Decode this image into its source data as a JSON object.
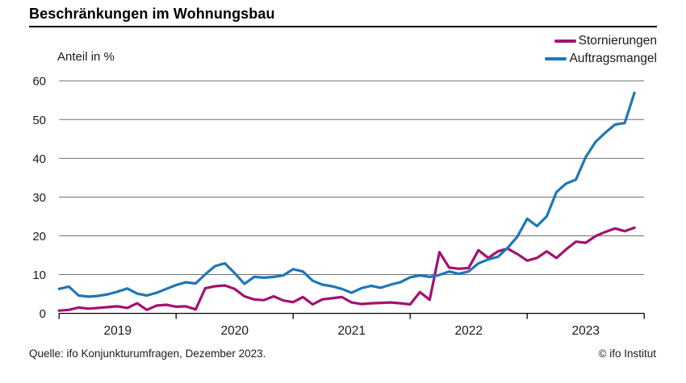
{
  "header": {
    "title": "Beschränkungen im Wohnungsbau"
  },
  "footer": {
    "source": "Quelle: ifo Konjunkturumfragen, Dezember 2023.",
    "copyright": "© ifo Institut"
  },
  "chart_data": {
    "type": "line",
    "title": "Beschränkungen im Wohnungsbau",
    "ylabel": "Anteil in %",
    "ylim": [
      0,
      60
    ],
    "ytick_step": 10,
    "grid": "horizontal",
    "legend_position": "top-right",
    "x_interval": "monthly",
    "x_range": [
      "2019-01",
      "2023-12"
    ],
    "year_labels": [
      "2019",
      "2020",
      "2021",
      "2022",
      "2023"
    ],
    "colors": {
      "stornierungen": "#a5116f",
      "auftragsmangel": "#1f77b4",
      "grid": "#6f6f6f",
      "axis": "#000000"
    },
    "series": [
      {
        "name": "Stornierungen",
        "color": "#a5116f",
        "values": [
          0.7,
          0.9,
          1.5,
          1.2,
          1.4,
          1.6,
          1.8,
          1.4,
          2.6,
          0.9,
          2.0,
          2.2,
          1.7,
          1.8,
          1.0,
          6.5,
          7.0,
          7.2,
          6.3,
          4.4,
          3.6,
          3.4,
          4.4,
          3.3,
          2.9,
          4.2,
          2.3,
          3.6,
          3.9,
          4.2,
          2.8,
          2.4,
          2.6,
          2.7,
          2.8,
          2.6,
          2.3,
          5.5,
          3.5,
          15.8,
          11.8,
          11.5,
          11.7,
          16.3,
          14.3,
          16.0,
          16.7,
          15.3,
          13.6,
          14.3,
          16.0,
          14.3,
          16.5,
          18.5,
          18.2,
          19.9,
          21.0,
          21.9,
          21.2,
          22.1
        ]
      },
      {
        "name": "Auftragsmangel",
        "color": "#1f77b4",
        "values": [
          6.3,
          6.9,
          4.6,
          4.3,
          4.5,
          4.9,
          5.6,
          6.4,
          5.1,
          4.6,
          5.3,
          6.3,
          7.3,
          8.0,
          7.7,
          10.1,
          12.2,
          12.9,
          10.4,
          7.6,
          9.4,
          9.2,
          9.4,
          9.8,
          11.4,
          10.8,
          8.4,
          7.4,
          7.0,
          6.3,
          5.3,
          6.5,
          7.1,
          6.6,
          7.4,
          8.0,
          9.3,
          9.8,
          9.4,
          9.9,
          10.8,
          10.2,
          10.8,
          12.9,
          13.9,
          14.6,
          16.9,
          19.8,
          24.4,
          22.5,
          25.0,
          31.3,
          33.5,
          34.5,
          40.3,
          44.2,
          46.6,
          48.7,
          49.1,
          56.9
        ]
      }
    ]
  }
}
